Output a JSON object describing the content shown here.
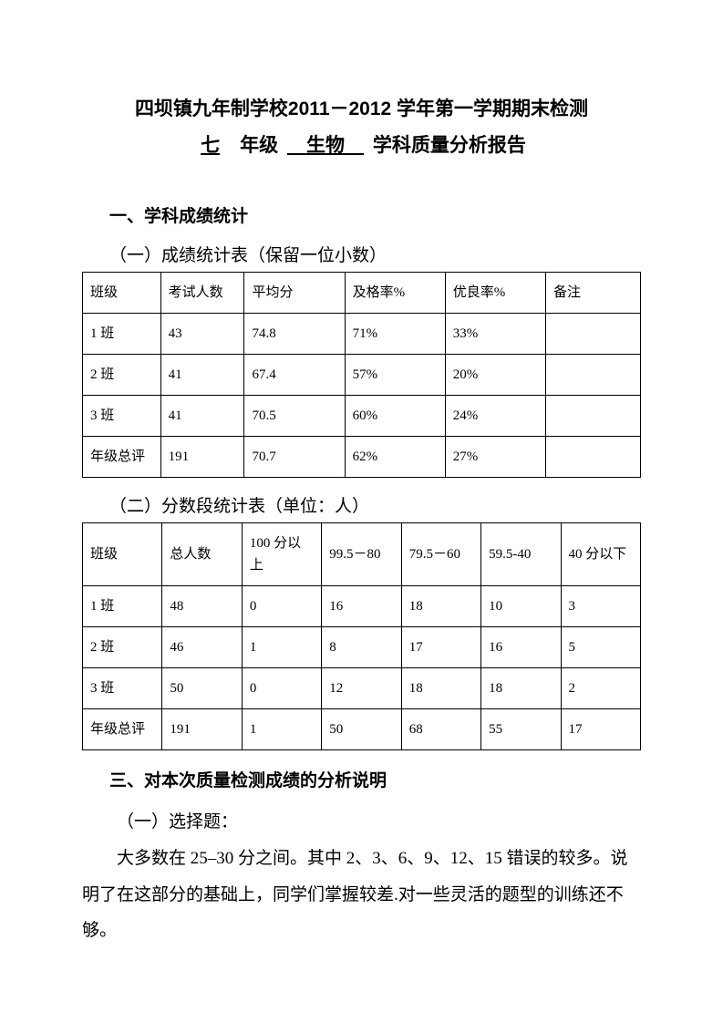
{
  "title": {
    "line1": "四坝镇九年制学校2011－2012 学年第一学期期末检测",
    "grade_u": "七",
    "grade_suffix": "年级",
    "subject_u": "生物",
    "line2_suffix": "学科质量分析报告"
  },
  "section1_heading": "一、学科成绩统计",
  "table1": {
    "caption": "（一）成绩统计表（保留一位小数）",
    "headers": [
      "班级",
      "考试人数",
      "平均分",
      "及格率%",
      "优良率%",
      "备注"
    ],
    "rows": [
      [
        "1 班",
        "43",
        "74.8",
        "71%",
        "33%",
        ""
      ],
      [
        "2 班",
        "41",
        "67.4",
        "57%",
        "20%",
        ""
      ],
      [
        "3 班",
        "41",
        "70.5",
        "60%",
        "24%",
        ""
      ],
      [
        "年级总评",
        "191",
        "70.7",
        "62%",
        "27%",
        ""
      ]
    ]
  },
  "table2": {
    "caption": "（二）分数段统计表（单位：人）",
    "headers": [
      "班级",
      "总人数",
      "100 分以上",
      "99.5－80",
      "79.5－60",
      "59.5-­40",
      "40 分以下"
    ],
    "rows": [
      [
        "1 班",
        "48",
        "0",
        "16",
        "18",
        "10",
        "3"
      ],
      [
        "2 班",
        "46",
        "1",
        "8",
        "17",
        "16",
        "5"
      ],
      [
        "3 班",
        "50",
        "0",
        "12",
        "18",
        "18",
        "2"
      ],
      [
        "年级总评",
        "191",
        "1",
        "50",
        "68",
        "55",
        "17"
      ]
    ]
  },
  "section3_heading": "三、对本次质量检测成绩的分析说明",
  "sub_choice": "（一）选择题：",
  "body_para": "大多数在 25–30 分之间。其中 2、3、6、9、12、15 错误的较多。说明了在这部分的基础上，同学们掌握较差.对一些灵活的题型的训练还不够。"
}
